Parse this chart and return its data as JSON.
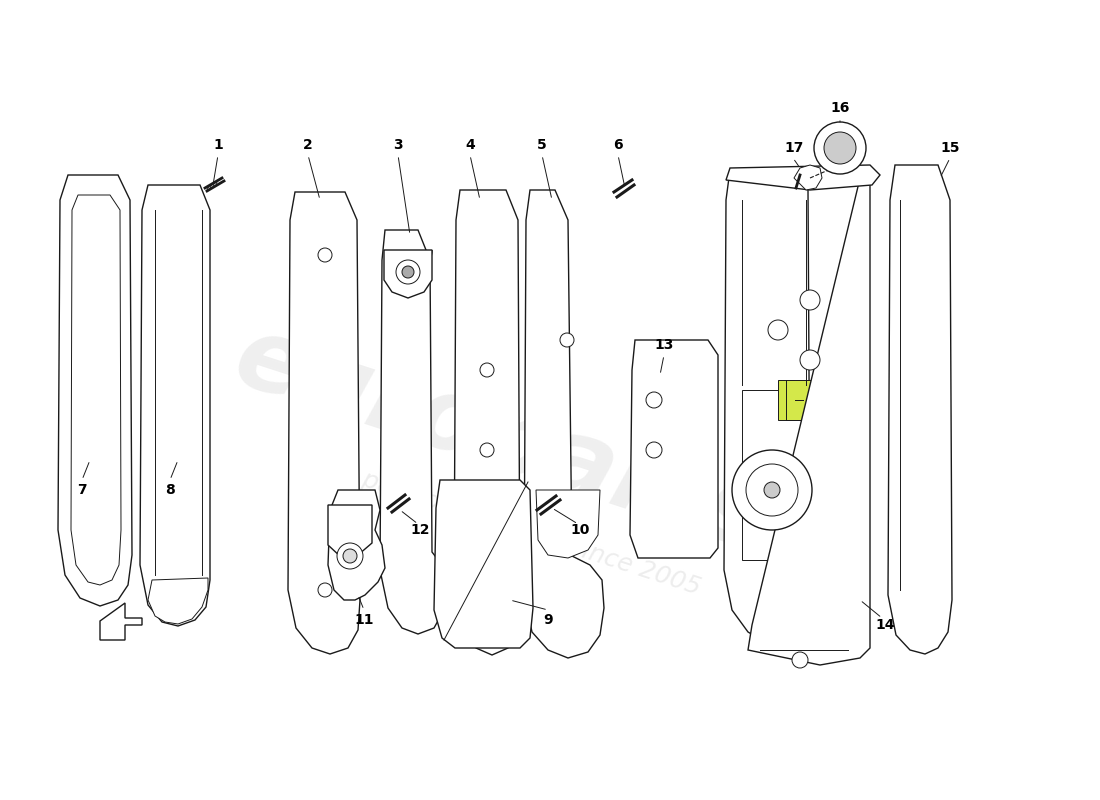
{
  "background_color": "#ffffff",
  "line_color": "#1a1a1a",
  "label_color": "#000000",
  "watermark_color": "#cccccc",
  "fig_width": 11.0,
  "fig_height": 8.0,
  "dpi": 100
}
